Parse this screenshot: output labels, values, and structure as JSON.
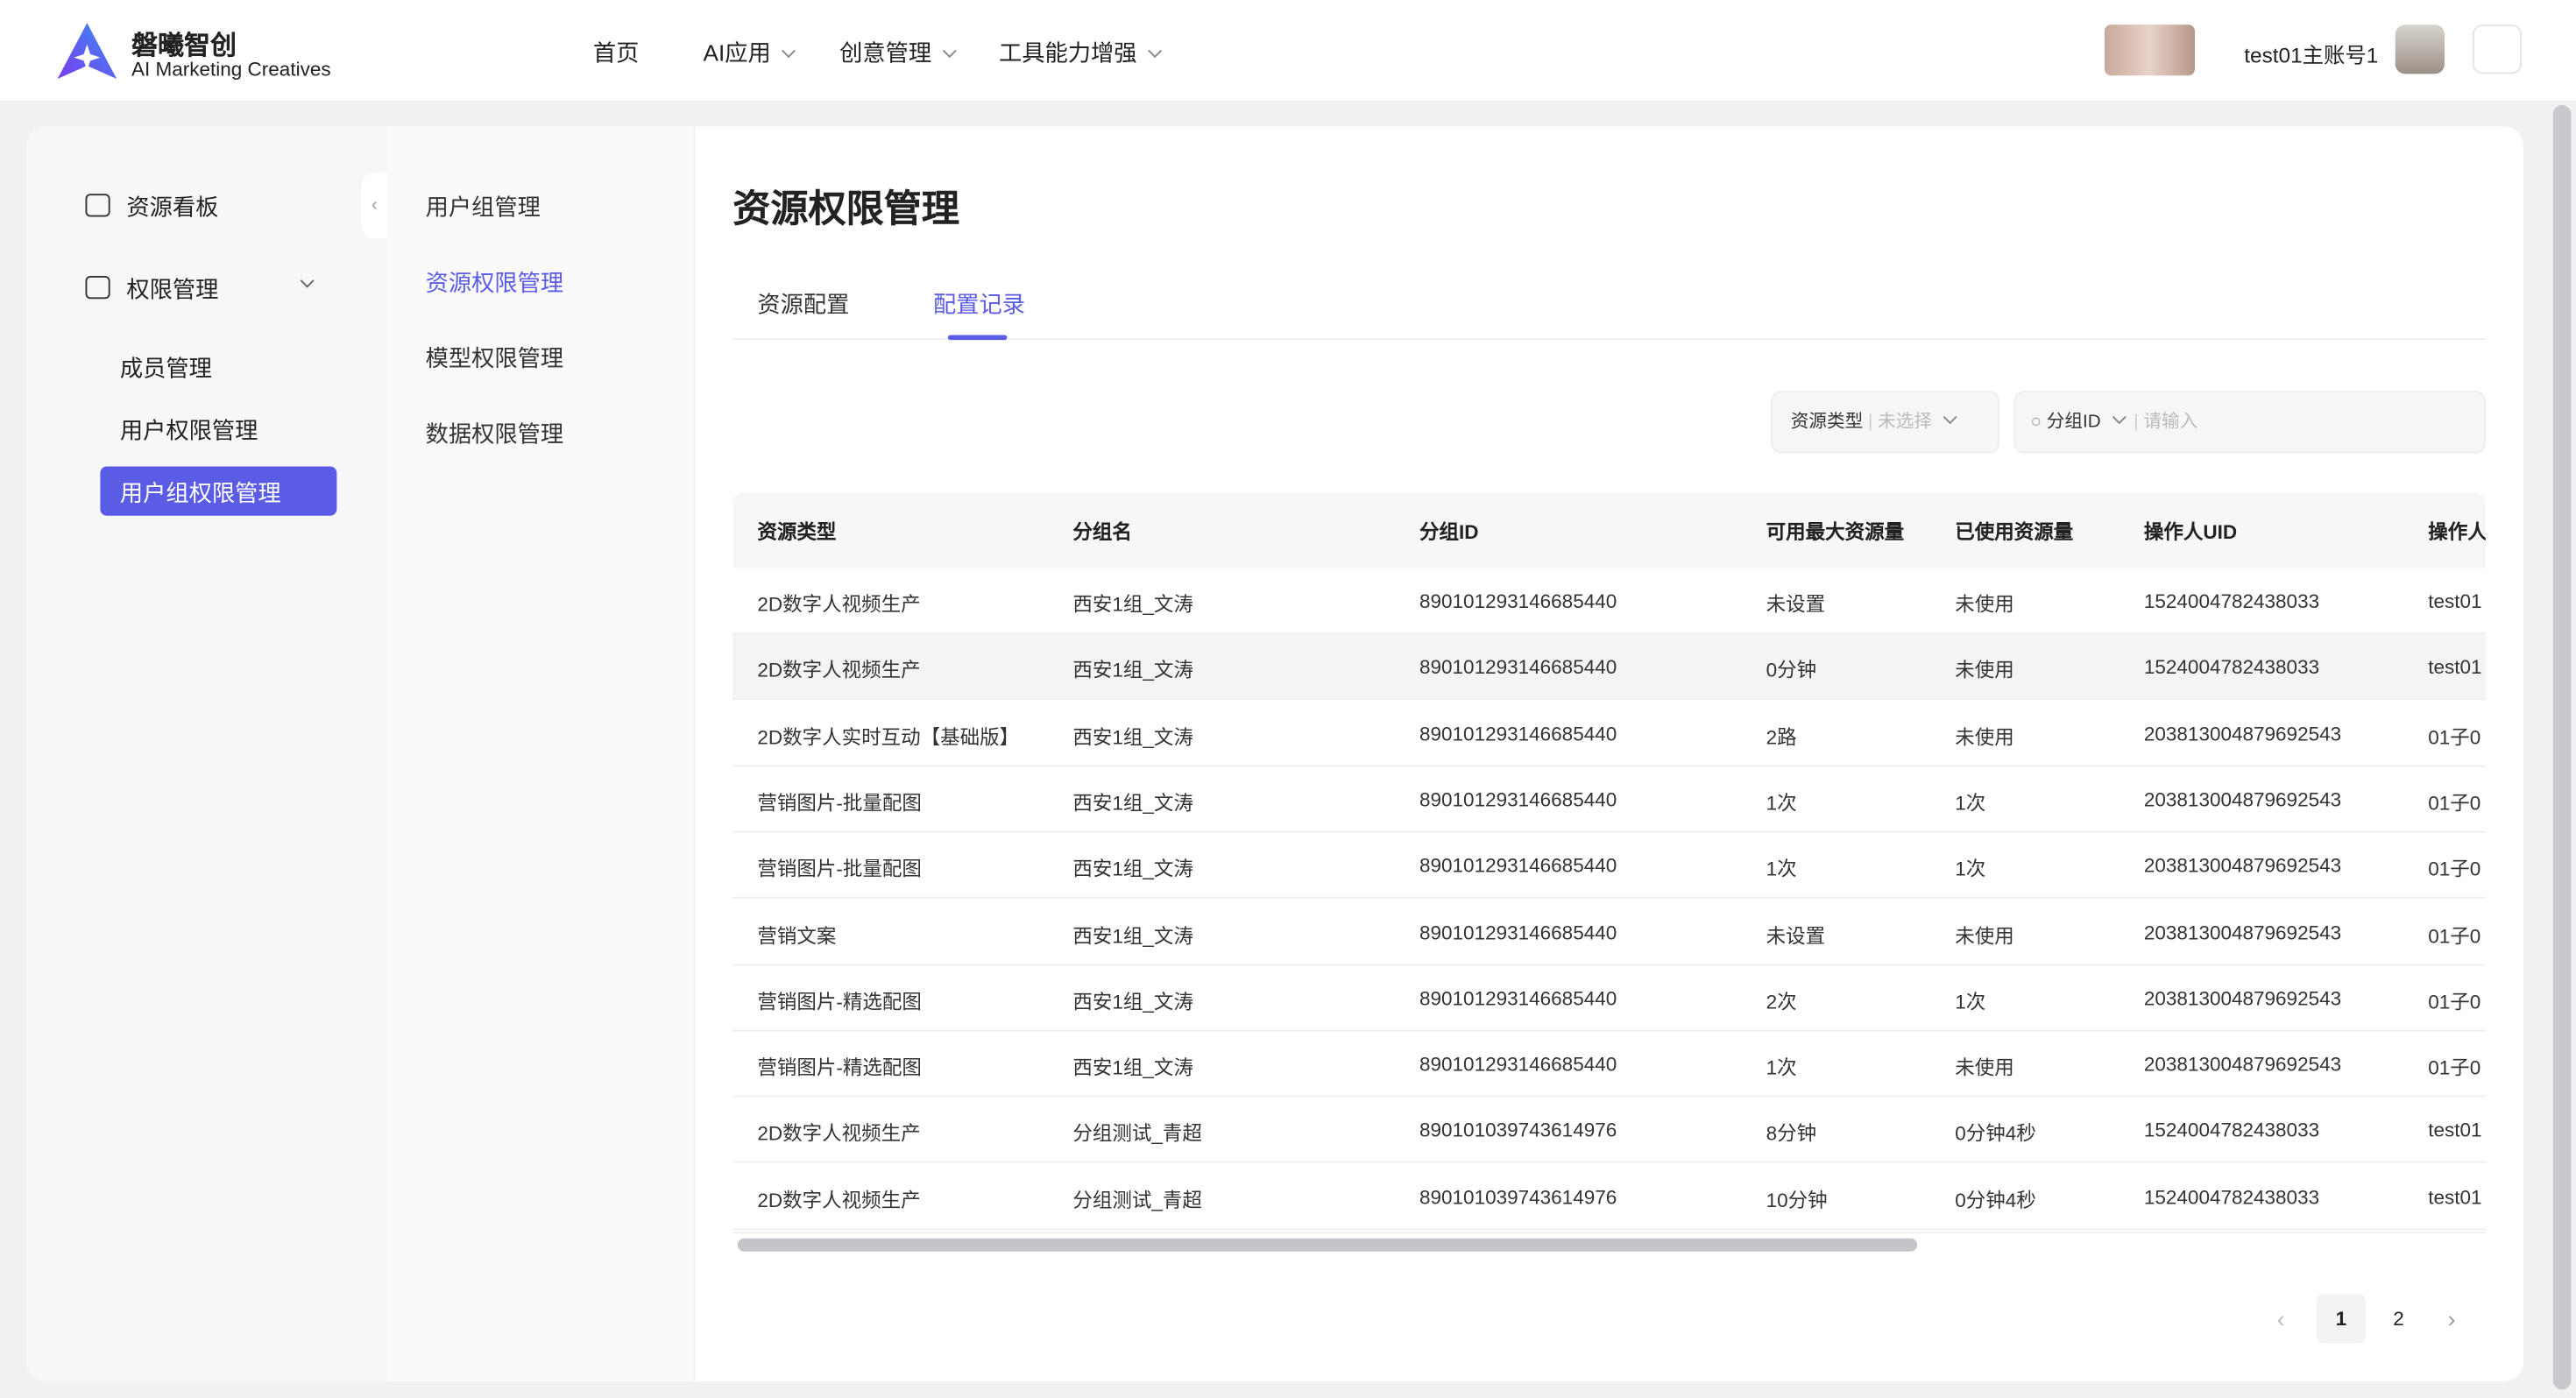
{
  "header": {
    "brand": "磐曦智创",
    "tagline": "AI Marketing Creatives",
    "nav": [
      "首页",
      "AI应用",
      "创意管理",
      "工具能力增强"
    ],
    "user": "test01主账号1"
  },
  "sidebar": {
    "items": [
      "资源看板",
      "权限管理"
    ],
    "sub_items": [
      "成员管理",
      "用户权限管理",
      "用户组权限管理"
    ]
  },
  "subnav": [
    "用户组管理",
    "资源权限管理",
    "模型权限管理",
    "数据权限管理"
  ],
  "page": {
    "title": "资源权限管理",
    "tabs": [
      "资源配置",
      "配置记录"
    ],
    "filters": {
      "type_label": "资源类型",
      "type_placeholder": "未选择",
      "id_label": "分组ID",
      "id_placeholder": "请输入"
    }
  },
  "table": {
    "columns": [
      "资源类型",
      "分组名",
      "分组ID",
      "可用最大资源量",
      "已使用资源量",
      "操作人UID",
      "操作人"
    ],
    "rows": [
      [
        "2D数字人视频生产",
        "西安1组_文涛",
        "890101293146685440",
        "未设置",
        "未使用",
        "1524004782438033",
        "test01"
      ],
      [
        "2D数字人视频生产",
        "西安1组_文涛",
        "890101293146685440",
        "0分钟",
        "未使用",
        "1524004782438033",
        "test01"
      ],
      [
        "2D数字人实时互动【基础版】",
        "西安1组_文涛",
        "890101293146685440",
        "2路",
        "未使用",
        "203813004879692543",
        "01子0"
      ],
      [
        "营销图片-批量配图",
        "西安1组_文涛",
        "890101293146685440",
        "1次",
        "1次",
        "203813004879692543",
        "01子0"
      ],
      [
        "营销图片-批量配图",
        "西安1组_文涛",
        "890101293146685440",
        "1次",
        "1次",
        "203813004879692543",
        "01子0"
      ],
      [
        "营销文案",
        "西安1组_文涛",
        "890101293146685440",
        "未设置",
        "未使用",
        "203813004879692543",
        "01子0"
      ],
      [
        "营销图片-精选配图",
        "西安1组_文涛",
        "890101293146685440",
        "2次",
        "1次",
        "203813004879692543",
        "01子0"
      ],
      [
        "营销图片-精选配图",
        "西安1组_文涛",
        "890101293146685440",
        "1次",
        "未使用",
        "203813004879692543",
        "01子0"
      ],
      [
        "2D数字人视频生产",
        "分组测试_青超",
        "890101039743614976",
        "8分钟",
        "0分钟4秒",
        "1524004782438033",
        "test01"
      ],
      [
        "2D数字人视频生产",
        "分组测试_青超",
        "890101039743614976",
        "10分钟",
        "0分钟4秒",
        "1524004782438033",
        "test01"
      ]
    ]
  },
  "pagination": [
    "1",
    "2"
  ]
}
